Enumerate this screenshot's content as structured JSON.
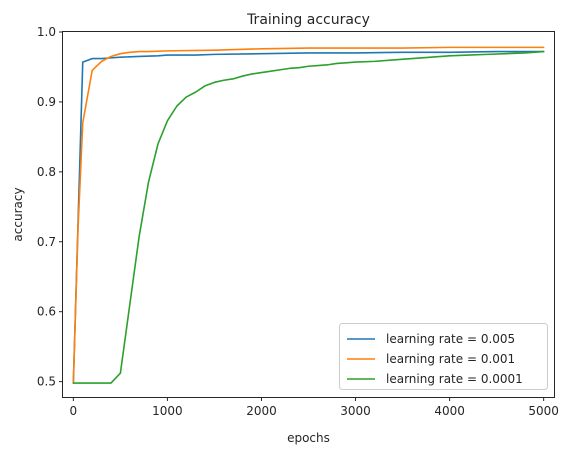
{
  "chart_data": {
    "type": "line",
    "title": "Training accuracy",
    "xlabel": "epochs",
    "ylabel": "accuracy",
    "xlim": [
      -110,
      5110
    ],
    "ylim": [
      0.478,
      1.0
    ],
    "xticks": [
      0,
      1000,
      2000,
      3000,
      4000,
      5000
    ],
    "yticks": [
      0.5,
      0.6,
      0.7,
      0.8,
      0.9,
      1.0
    ],
    "xtick_labels": [
      "0",
      "1000",
      "2000",
      "3000",
      "4000",
      "5000"
    ],
    "ytick_labels": [
      "0.5",
      "0.6",
      "0.7",
      "0.8",
      "0.9",
      "1.0"
    ],
    "legend_position": "lower-right",
    "grid": false,
    "series": [
      {
        "name": "learning rate = 0.005",
        "color": "#1f77b4",
        "x": [
          0,
          100,
          200,
          300,
          400,
          500,
          700,
          900,
          1000,
          1300,
          1500,
          2000,
          2500,
          3000,
          3500,
          4000,
          4500,
          5000
        ],
        "y": [
          0.498,
          0.957,
          0.962,
          0.962,
          0.963,
          0.964,
          0.965,
          0.966,
          0.967,
          0.967,
          0.968,
          0.969,
          0.97,
          0.97,
          0.971,
          0.971,
          0.972,
          0.972
        ]
      },
      {
        "name": "learning rate = 0.001",
        "color": "#ff7f0e",
        "x": [
          0,
          50,
          100,
          200,
          300,
          400,
          500,
          600,
          700,
          800,
          1000,
          1500,
          2000,
          2500,
          3000,
          3500,
          4000,
          5000
        ],
        "y": [
          0.498,
          0.72,
          0.87,
          0.945,
          0.958,
          0.965,
          0.969,
          0.971,
          0.972,
          0.972,
          0.973,
          0.974,
          0.976,
          0.977,
          0.977,
          0.977,
          0.978,
          0.978
        ]
      },
      {
        "name": "learning rate = 0.0001",
        "color": "#2ca02c",
        "x": [
          0,
          100,
          200,
          300,
          400,
          500,
          600,
          700,
          800,
          900,
          1000,
          1100,
          1200,
          1300,
          1400,
          1500,
          1600,
          1700,
          1800,
          1900,
          2000,
          2100,
          2200,
          2300,
          2400,
          2500,
          2600,
          2700,
          2800,
          2900,
          3000,
          3200,
          3400,
          3600,
          3800,
          4000,
          4200,
          4400,
          4600,
          4800,
          5000
        ],
        "y": [
          0.498,
          0.498,
          0.498,
          0.498,
          0.498,
          0.512,
          0.61,
          0.708,
          0.786,
          0.84,
          0.873,
          0.894,
          0.907,
          0.914,
          0.923,
          0.928,
          0.931,
          0.933,
          0.937,
          0.94,
          0.942,
          0.944,
          0.946,
          0.948,
          0.949,
          0.951,
          0.952,
          0.953,
          0.955,
          0.956,
          0.957,
          0.958,
          0.96,
          0.962,
          0.964,
          0.966,
          0.967,
          0.968,
          0.969,
          0.97,
          0.972
        ]
      }
    ]
  }
}
